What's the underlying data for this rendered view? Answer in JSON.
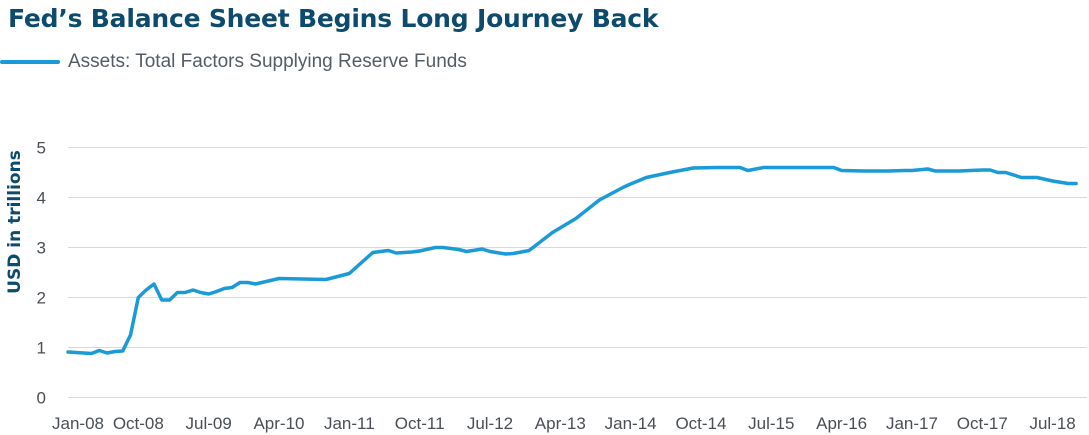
{
  "chart_data": {
    "type": "line",
    "title": "Fed’s Balance Sheet Begins Long Journey Back",
    "xlabel": "",
    "ylabel": "USD in trillions",
    "ylim": [
      0,
      5
    ],
    "yticks": [
      0,
      1,
      2,
      3,
      4,
      5
    ],
    "x_tick_labels": [
      "Jan-08",
      "Oct-08",
      "Jul-09",
      "Apr-10",
      "Jan-11",
      "Oct-11",
      "Jul-12",
      "Apr-13",
      "Jan-14",
      "Oct-14",
      "Jul-15",
      "Apr-16",
      "Jan-17",
      "Oct-17",
      "Jul-18"
    ],
    "grid": true,
    "legend_position": "top-left",
    "colors": {
      "series": "#1a9ad6",
      "grid": "#d9d9d9",
      "title": "#0c4a6e"
    },
    "series": [
      {
        "name": "Assets: Total Factors Supplying Reserve Funds",
        "x": [
          "2008-01",
          "2008-02",
          "2008-03",
          "2008-04",
          "2008-05",
          "2008-06",
          "2008-07",
          "2008-08",
          "2008-09",
          "2008-10",
          "2008-11",
          "2008-12",
          "2009-01",
          "2009-02",
          "2009-03",
          "2009-04",
          "2009-05",
          "2009-06",
          "2009-07",
          "2009-08",
          "2009-09",
          "2009-10",
          "2009-11",
          "2009-12",
          "2010-01",
          "2010-04",
          "2010-07",
          "2010-10",
          "2011-01",
          "2011-04",
          "2011-06",
          "2011-07",
          "2011-09",
          "2011-10",
          "2011-12",
          "2012-01",
          "2012-03",
          "2012-04",
          "2012-06",
          "2012-07",
          "2012-09",
          "2012-10",
          "2012-12",
          "2013-03",
          "2013-06",
          "2013-09",
          "2013-12",
          "2014-01",
          "2014-03",
          "2014-06",
          "2014-09",
          "2014-12",
          "2015-03",
          "2015-04",
          "2015-06",
          "2015-09",
          "2015-12",
          "2016-03",
          "2016-04",
          "2016-07",
          "2016-10",
          "2016-12",
          "2017-01",
          "2017-03",
          "2017-04",
          "2017-07",
          "2017-10",
          "2017-11",
          "2017-12",
          "2018-01",
          "2018-03",
          "2018-05",
          "2018-07",
          "2018-09",
          "2018-10"
        ],
        "values": [
          0.91,
          0.9,
          0.89,
          0.88,
          0.94,
          0.89,
          0.92,
          0.93,
          1.25,
          2.0,
          2.15,
          2.27,
          1.95,
          1.95,
          2.1,
          2.1,
          2.15,
          2.1,
          2.07,
          2.12,
          2.18,
          2.2,
          2.3,
          2.3,
          2.27,
          2.38,
          2.37,
          2.36,
          2.48,
          2.9,
          2.94,
          2.89,
          2.91,
          2.93,
          3.0,
          3.0,
          2.96,
          2.92,
          2.97,
          2.92,
          2.87,
          2.88,
          2.94,
          3.3,
          3.58,
          3.95,
          4.2,
          4.27,
          4.4,
          4.5,
          4.59,
          4.6,
          4.6,
          4.54,
          4.6,
          4.6,
          4.6,
          4.6,
          4.54,
          4.53,
          4.53,
          4.54,
          4.54,
          4.57,
          4.53,
          4.53,
          4.55,
          4.55,
          4.5,
          4.5,
          4.4,
          4.4,
          4.33,
          4.28,
          4.28
        ]
      }
    ]
  }
}
